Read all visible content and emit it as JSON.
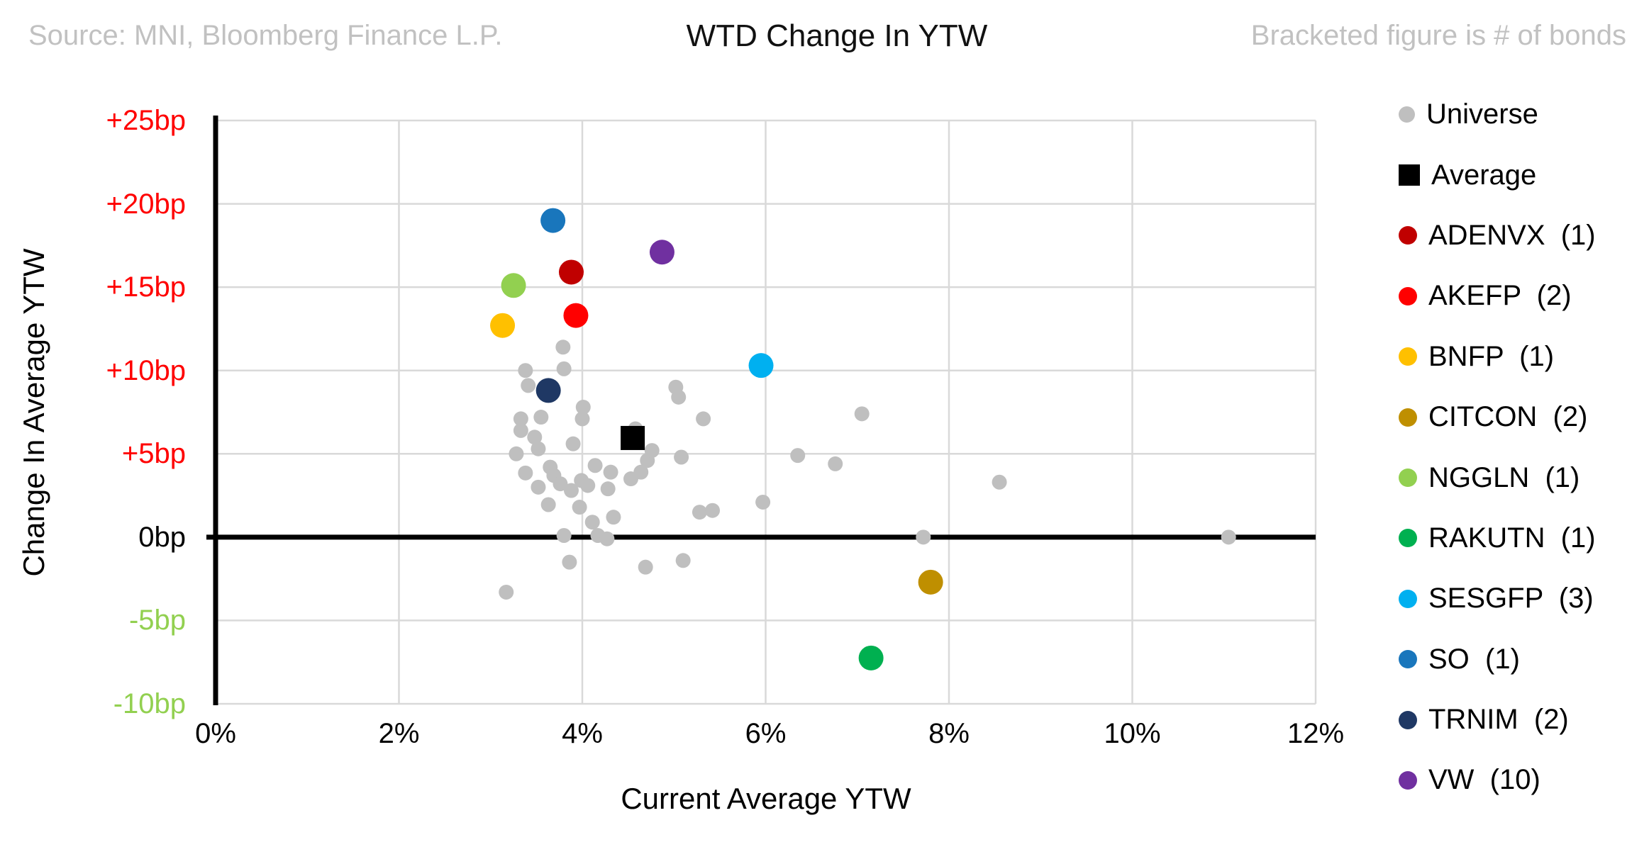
{
  "header": {
    "source": "Source: MNI, Bloomberg Finance L.P.",
    "title": "WTD Change In YTW",
    "note": "Bracketed figure is # of bonds"
  },
  "chart_data": {
    "type": "scatter",
    "title": "WTD Change In YTW",
    "xlabel": "Current Average YTW",
    "ylabel": "Change In Average YTW",
    "xlim": [
      0,
      12
    ],
    "ylim": [
      -10,
      25
    ],
    "grid": true,
    "grid_color": "#d9d9d9",
    "axis_color": "#000000",
    "zero_line": true,
    "legend_position": "right",
    "x_ticks": [
      {
        "value": 0,
        "label": "0%"
      },
      {
        "value": 2,
        "label": "2%"
      },
      {
        "value": 4,
        "label": "4%"
      },
      {
        "value": 6,
        "label": "6%"
      },
      {
        "value": 8,
        "label": "8%"
      },
      {
        "value": 10,
        "label": "10%"
      },
      {
        "value": 12,
        "label": "12%"
      }
    ],
    "y_ticks": [
      {
        "value": 25,
        "label": "+25bp",
        "color": "#ff0000"
      },
      {
        "value": 20,
        "label": "+20bp",
        "color": "#ff0000"
      },
      {
        "value": 15,
        "label": "+15bp",
        "color": "#ff0000"
      },
      {
        "value": 10,
        "label": "+10bp",
        "color": "#ff0000"
      },
      {
        "value": 5,
        "label": "+5bp",
        "color": "#ff0000"
      },
      {
        "value": 0,
        "label": "0bp",
        "color": "#000000"
      },
      {
        "value": -5,
        "label": "-5bp",
        "color": "#92d050"
      },
      {
        "value": -10,
        "label": "-10bp",
        "color": "#92d050"
      }
    ],
    "series": [
      {
        "name": "Universe",
        "legend_label": "Universe",
        "marker": "circle",
        "color": "#bfbfbf",
        "radius": 10.5,
        "legend_size": 23,
        "points": [
          [
            3.79,
            11.4
          ],
          [
            3.8,
            10.1
          ],
          [
            3.38,
            10.0
          ],
          [
            3.41,
            9.1
          ],
          [
            4.01,
            7.8
          ],
          [
            4.0,
            7.1
          ],
          [
            5.02,
            9.0
          ],
          [
            5.05,
            8.4
          ],
          [
            5.32,
            7.1
          ],
          [
            7.05,
            7.4
          ],
          [
            3.33,
            7.1
          ],
          [
            3.55,
            7.2
          ],
          [
            3.33,
            6.4
          ],
          [
            3.48,
            6.0
          ],
          [
            3.52,
            5.3
          ],
          [
            3.28,
            5.0
          ],
          [
            3.9,
            5.6
          ],
          [
            4.58,
            6.5
          ],
          [
            3.38,
            3.85
          ],
          [
            3.65,
            4.2
          ],
          [
            3.69,
            3.7
          ],
          [
            3.52,
            3.0
          ],
          [
            3.63,
            1.95
          ],
          [
            3.76,
            3.2
          ],
          [
            3.88,
            2.8
          ],
          [
            3.99,
            3.4
          ],
          [
            4.06,
            3.1
          ],
          [
            4.14,
            4.3
          ],
          [
            4.31,
            3.9
          ],
          [
            4.28,
            2.9
          ],
          [
            3.97,
            1.8
          ],
          [
            4.11,
            0.9
          ],
          [
            4.34,
            1.2
          ],
          [
            4.17,
            0.1
          ],
          [
            4.27,
            -0.1
          ],
          [
            3.8,
            0.1
          ],
          [
            3.86,
            -1.5
          ],
          [
            4.53,
            3.5
          ],
          [
            4.64,
            3.9
          ],
          [
            4.71,
            4.6
          ],
          [
            4.76,
            5.2
          ],
          [
            5.08,
            4.8
          ],
          [
            5.28,
            1.5
          ],
          [
            5.42,
            1.6
          ],
          [
            5.97,
            2.1
          ],
          [
            6.35,
            4.9
          ],
          [
            6.76,
            4.4
          ],
          [
            8.55,
            3.3
          ],
          [
            4.69,
            -1.8
          ],
          [
            5.1,
            -1.4
          ],
          [
            3.17,
            -3.3
          ],
          [
            7.72,
            0.0
          ],
          [
            11.05,
            0.0
          ]
        ]
      },
      {
        "name": "Average",
        "legend_label": "Average",
        "marker": "square",
        "color": "#000000",
        "radius": 17,
        "legend_size": 30,
        "points": [
          [
            4.55,
            5.95
          ]
        ]
      },
      {
        "name": "ADENVX",
        "legend_label": "ADENVX  (1)",
        "bonds": 1,
        "marker": "circle",
        "color": "#c00000",
        "radius": 17.5,
        "legend_size": 26,
        "points": [
          [
            3.88,
            15.9
          ]
        ]
      },
      {
        "name": "AKEFP",
        "legend_label": "AKEFP  (2)",
        "bonds": 2,
        "marker": "circle",
        "color": "#ff0000",
        "radius": 17.5,
        "legend_size": 26,
        "points": [
          [
            3.93,
            13.3
          ]
        ]
      },
      {
        "name": "BNFP",
        "legend_label": "BNFP  (1)",
        "bonds": 1,
        "marker": "circle",
        "color": "#ffc000",
        "radius": 17.5,
        "legend_size": 26,
        "points": [
          [
            3.13,
            12.7
          ]
        ]
      },
      {
        "name": "CITCON",
        "legend_label": "CITCON  (2)",
        "bonds": 2,
        "marker": "circle",
        "color": "#bf8f00",
        "radius": 17.5,
        "legend_size": 26,
        "points": [
          [
            7.8,
            -2.7
          ]
        ]
      },
      {
        "name": "NGGLN",
        "legend_label": "NGGLN  (1)",
        "bonds": 1,
        "marker": "circle",
        "color": "#92d050",
        "radius": 17.5,
        "legend_size": 26,
        "points": [
          [
            3.25,
            15.1
          ]
        ]
      },
      {
        "name": "RAKUTN",
        "legend_label": "RAKUTN  (1)",
        "bonds": 1,
        "marker": "circle",
        "color": "#00b050",
        "radius": 17.5,
        "legend_size": 26,
        "points": [
          [
            7.15,
            -7.25
          ]
        ]
      },
      {
        "name": "SESGFP",
        "legend_label": "SESGFP  (3)",
        "bonds": 3,
        "marker": "circle",
        "color": "#00b0f0",
        "radius": 17.5,
        "legend_size": 26,
        "points": [
          [
            5.95,
            10.3
          ]
        ]
      },
      {
        "name": "SO",
        "legend_label": "SO  (1)",
        "bonds": 1,
        "marker": "circle",
        "color": "#1976bc",
        "radius": 17.5,
        "legend_size": 26,
        "points": [
          [
            3.68,
            19.0
          ]
        ]
      },
      {
        "name": "TRNIM",
        "legend_label": "TRNIM  (2)",
        "bonds": 2,
        "marker": "circle",
        "color": "#1f3864",
        "radius": 17.5,
        "legend_size": 26,
        "points": [
          [
            3.63,
            8.8
          ]
        ]
      },
      {
        "name": "VW",
        "legend_label": "VW  (10)",
        "bonds": 10,
        "marker": "circle",
        "color": "#7030a0",
        "radius": 17.5,
        "legend_size": 26,
        "points": [
          [
            4.87,
            17.1
          ]
        ]
      }
    ]
  }
}
